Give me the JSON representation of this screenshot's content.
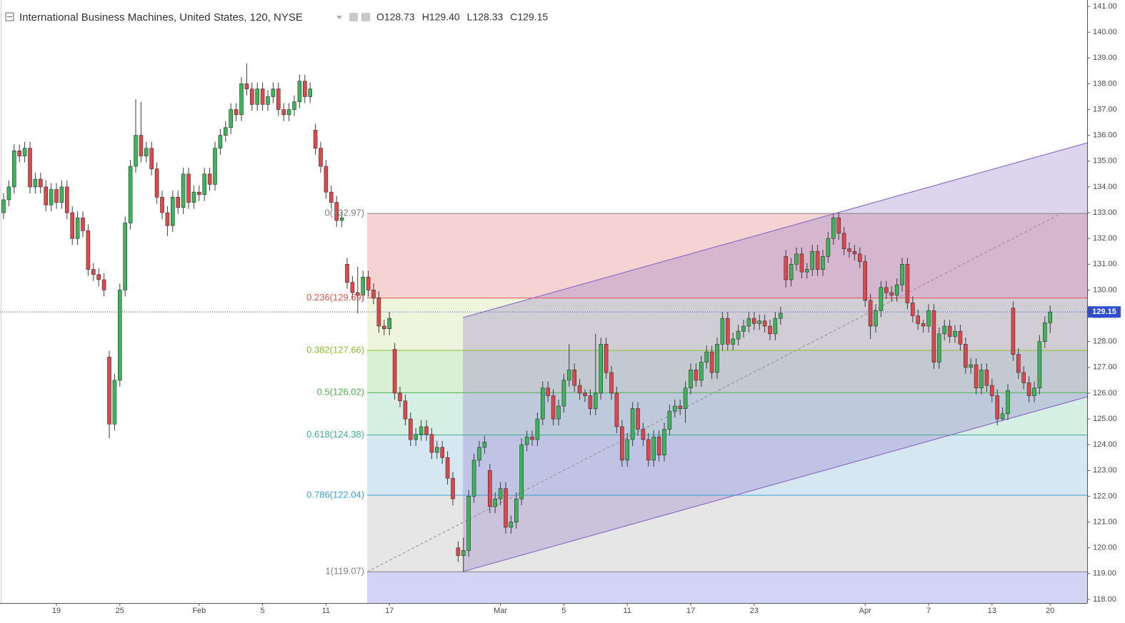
{
  "header": {
    "title": "International Business Machines, United States, 120, NYSE",
    "ohlc": [
      "O128.73",
      "H129.40",
      "L128.33",
      "C129.15"
    ]
  },
  "chart_data": {
    "type": "candlestick",
    "categories": [
      null,
      null,
      null,
      null,
      null,
      null,
      null,
      null,
      null,
      null,
      "19",
      null,
      null,
      null,
      null,
      null,
      null,
      null,
      null,
      null,
      null,
      null,
      "25",
      null,
      null,
      null,
      null,
      null,
      null,
      null,
      null,
      null,
      null,
      null,
      null,
      null,
      null,
      "Feb",
      null,
      null,
      null,
      null,
      null,
      null,
      null,
      null,
      null,
      null,
      null,
      "5",
      null,
      null,
      null,
      null,
      null,
      null,
      null,
      null,
      null,
      null,
      null,
      "11",
      null,
      null,
      null,
      null,
      null,
      null,
      null,
      null,
      null,
      null,
      null,
      "17",
      null,
      null,
      null,
      null,
      null,
      null,
      null,
      null,
      null,
      null,
      null,
      null,
      null,
      null,
      null,
      null,
      null,
      null,
      null,
      null,
      "Mar",
      null,
      null,
      null,
      null,
      null,
      null,
      null,
      null,
      null,
      null,
      null,
      "5",
      null,
      null,
      null,
      null,
      null,
      null,
      null,
      null,
      null,
      null,
      null,
      "11",
      null,
      null,
      null,
      null,
      null,
      null,
      null,
      null,
      null,
      null,
      null,
      "17",
      null,
      null,
      null,
      null,
      null,
      null,
      null,
      null,
      null,
      null,
      null,
      "23",
      null,
      null,
      null,
      null,
      null,
      null,
      null,
      null,
      null,
      null,
      null,
      null,
      null,
      null,
      null,
      null,
      null,
      null,
      null,
      null,
      "Apr",
      null,
      null,
      null,
      null,
      null,
      null,
      null,
      null,
      null,
      null,
      null,
      "7",
      null,
      null,
      null,
      null,
      null,
      null,
      null,
      null,
      null,
      null,
      null,
      "13",
      null,
      null,
      null,
      null,
      null,
      null,
      null,
      null,
      null,
      null,
      "20"
    ],
    "open": [
      133.0,
      133.5,
      134.0,
      135.4,
      135.2,
      135.5,
      134.0,
      134.3,
      134.0,
      133.3,
      133.9,
      133.4,
      134.0,
      133.0,
      132.0,
      132.8,
      132.3,
      130.8,
      130.6,
      130.4,
      127.4,
      124.8,
      126.5,
      130.0,
      132.6,
      134.8,
      136.0,
      135.2,
      135.5,
      134.7,
      133.6,
      133.0,
      132.5,
      133.6,
      133.2,
      134.5,
      133.4,
      133.8,
      133.7,
      134.5,
      134.1,
      135.5,
      136.0,
      136.3,
      137.0,
      136.8,
      138.0,
      137.8,
      137.2,
      137.8,
      137.2,
      137.5,
      137.8,
      137.0,
      136.8,
      137.0,
      137.3,
      138.1,
      137.5,
      136.2,
      135.5,
      134.8,
      133.8,
      133.4,
      132.7,
      131.0,
      130.3,
      129.9,
      129.8,
      130.5,
      130.0,
      129.7,
      128.6,
      128.5,
      127.7,
      126.0,
      125.7,
      125.0,
      124.2,
      124.4,
      124.7,
      124.4,
      123.7,
      123.9,
      123.5,
      122.7,
      120.0,
      119.7,
      119.9,
      122.0,
      123.4,
      123.9,
      123.0,
      121.6,
      121.9,
      122.3,
      120.8,
      121.0,
      121.9,
      124.0,
      124.3,
      124.2,
      125.0,
      126.2,
      125.9,
      125.0,
      125.5,
      126.5,
      126.9,
      126.3,
      126.0,
      125.9,
      125.4,
      126.0,
      127.9,
      126.8,
      126.0,
      124.7,
      123.4,
      124.2,
      125.4,
      124.6,
      124.2,
      123.4,
      124.3,
      123.6,
      124.6,
      125.3,
      125.5,
      125.4,
      126.2,
      126.9,
      126.5,
      127.2,
      127.6,
      126.8,
      127.9,
      128.9,
      127.9,
      128.1,
      128.4,
      128.6,
      128.9,
      128.7,
      128.8,
      128.6,
      128.3,
      128.9,
      131.3,
      130.4,
      131.0,
      131.4,
      130.7,
      130.8,
      131.5,
      130.8,
      131.3,
      132.0,
      132.8,
      132.2,
      131.6,
      131.5,
      131.4,
      131.1,
      129.6,
      128.6,
      129.2,
      130.1,
      129.9,
      129.8,
      130.2,
      131.0,
      129.5,
      129.0,
      128.7,
      128.6,
      129.2,
      127.2,
      128.3,
      128.6,
      128.2,
      128.4,
      127.9,
      127.0,
      127.1,
      126.2,
      126.9,
      126.3,
      125.9,
      125.0,
      125.2,
      129.3,
      127.5,
      126.8,
      126.4,
      125.9,
      126.2,
      128.0,
      128.73
    ],
    "high": [
      133.75,
      134.25,
      135.65,
      135.65,
      135.75,
      135.75,
      134.55,
      134.55,
      134.25,
      134.15,
      134.15,
      134.25,
      134.25,
      133.25,
      133.05,
      133.05,
      132.55,
      131.05,
      130.85,
      130.65,
      127.65,
      126.75,
      130.25,
      132.85,
      135.05,
      137.4,
      137.3,
      135.75,
      135.75,
      134.95,
      133.85,
      133.25,
      133.85,
      133.85,
      134.75,
      134.75,
      134.05,
      134.05,
      134.75,
      134.75,
      135.75,
      136.25,
      136.55,
      137.25,
      137.25,
      138.25,
      138.8,
      138.05,
      138.05,
      138.05,
      137.75,
      138.05,
      138.05,
      137.25,
      137.25,
      137.55,
      138.35,
      138.35,
      138.05,
      136.45,
      135.75,
      135.05,
      134.05,
      133.65,
      133.05,
      131.25,
      130.55,
      130.9,
      130.75,
      130.75,
      130.25,
      129.95,
      128.85,
      129.15,
      127.95,
      126.25,
      125.95,
      125.25,
      124.65,
      124.95,
      124.95,
      124.65,
      124.15,
      124.15,
      123.75,
      122.95,
      120.25,
      120.4,
      122.25,
      123.65,
      124.15,
      124.35,
      123.25,
      122.15,
      122.55,
      122.55,
      121.25,
      122.15,
      124.25,
      124.55,
      124.55,
      125.25,
      126.45,
      126.45,
      126.15,
      125.75,
      126.75,
      127.9,
      127.15,
      126.55,
      126.15,
      126.15,
      128.3,
      128.15,
      128.15,
      127.05,
      126.25,
      124.95,
      124.45,
      125.65,
      125.65,
      124.85,
      124.45,
      124.55,
      124.55,
      124.85,
      125.55,
      125.75,
      125.75,
      126.45,
      127.15,
      127.15,
      127.45,
      127.85,
      127.85,
      128.15,
      129.15,
      129.15,
      128.35,
      128.65,
      128.85,
      129.15,
      129.15,
      129.05,
      129.05,
      128.85,
      129.15,
      129.35,
      131.55,
      131.25,
      131.65,
      131.65,
      131.05,
      131.75,
      131.75,
      131.55,
      132.25,
      132.97,
      133.0,
      132.45,
      131.85,
      131.75,
      131.65,
      131.35,
      129.85,
      129.45,
      130.35,
      130.35,
      130.15,
      130.45,
      131.25,
      131.25,
      129.75,
      129.25,
      128.85,
      129.45,
      129.45,
      128.55,
      128.85,
      128.85,
      128.65,
      128.65,
      128.15,
      127.35,
      127.35,
      127.15,
      127.15,
      126.55,
      126.15,
      125.45,
      126.35,
      129.55,
      127.75,
      127.05,
      126.65,
      126.45,
      128.25,
      128.98,
      129.4
    ],
    "low": [
      132.75,
      133.25,
      133.75,
      134.95,
      134.95,
      133.75,
      133.75,
      133.75,
      133.05,
      133.05,
      133.15,
      133.15,
      132.75,
      131.75,
      131.75,
      132.05,
      130.55,
      130.35,
      130.15,
      129.75,
      124.25,
      124.55,
      126.25,
      129.75,
      132.35,
      134.55,
      134.95,
      134.95,
      134.45,
      133.35,
      132.75,
      132.1,
      132.25,
      132.95,
      132.95,
      133.15,
      133.15,
      133.45,
      133.45,
      133.85,
      133.85,
      135.25,
      135.75,
      136.05,
      136.55,
      136.55,
      137.55,
      136.95,
      136.95,
      136.95,
      136.95,
      137.25,
      136.75,
      136.55,
      136.55,
      136.75,
      137.05,
      137.25,
      137.25,
      135.25,
      134.55,
      133.55,
      133.15,
      132.45,
      132.45,
      130.05,
      129.65,
      129.1,
      129.55,
      129.75,
      129.45,
      128.35,
      128.25,
      128.25,
      125.75,
      125.45,
      124.75,
      123.95,
      123.95,
      124.15,
      124.15,
      123.45,
      123.45,
      123.25,
      122.45,
      121.65,
      119.45,
      119.07,
      119.65,
      121.75,
      123.15,
      123.65,
      121.35,
      121.35,
      121.65,
      120.55,
      120.55,
      120.75,
      121.65,
      123.75,
      123.95,
      123.95,
      124.75,
      125.65,
      124.75,
      124.75,
      125.25,
      126.25,
      126.05,
      125.75,
      125.65,
      125.15,
      125.15,
      125.75,
      126.55,
      125.75,
      124.45,
      123.15,
      123.15,
      123.95,
      124.35,
      123.95,
      123.15,
      123.15,
      123.35,
      123.35,
      124.35,
      125.05,
      125.15,
      124.85,
      125.95,
      126.25,
      126.25,
      126.95,
      126.55,
      126.55,
      127.65,
      127.65,
      127.65,
      127.85,
      128.15,
      128.35,
      128.45,
      128.45,
      128.35,
      128.05,
      128.05,
      128.65,
      130.1,
      130.15,
      130.75,
      130.45,
      130.45,
      130.55,
      130.55,
      130.55,
      131.05,
      131.75,
      131.95,
      131.35,
      131.25,
      131.15,
      130.85,
      129.35,
      128.1,
      128.35,
      128.95,
      129.65,
      129.55,
      129.55,
      129.95,
      129.25,
      128.75,
      128.45,
      128.35,
      128.35,
      126.95,
      126.95,
      128.05,
      127.95,
      127.95,
      127.65,
      126.75,
      126.75,
      125.95,
      125.95,
      126.05,
      125.65,
      124.75,
      124.95,
      124.95,
      127.25,
      126.55,
      126.15,
      125.65,
      125.65,
      125.95,
      127.75,
      128.33
    ],
    "close": [
      133.5,
      134.0,
      135.4,
      135.2,
      135.5,
      134.0,
      134.3,
      134.0,
      133.3,
      133.9,
      133.4,
      134.0,
      133.0,
      132.0,
      132.8,
      132.3,
      130.8,
      130.6,
      130.4,
      130.0,
      124.8,
      126.5,
      130.0,
      132.6,
      134.8,
      136.0,
      135.2,
      135.5,
      134.7,
      133.6,
      133.0,
      132.5,
      133.6,
      133.2,
      134.5,
      133.4,
      133.8,
      133.7,
      134.5,
      134.1,
      135.5,
      136.0,
      136.3,
      137.0,
      136.8,
      138.0,
      137.8,
      137.2,
      137.8,
      137.2,
      137.5,
      137.8,
      137.0,
      136.8,
      137.0,
      137.3,
      138.1,
      137.5,
      137.8,
      135.5,
      134.8,
      133.8,
      133.4,
      132.7,
      132.8,
      130.3,
      129.9,
      129.8,
      130.5,
      130.0,
      129.7,
      128.6,
      128.5,
      128.9,
      126.0,
      125.7,
      125.0,
      124.2,
      124.4,
      124.7,
      124.4,
      123.7,
      123.9,
      123.5,
      122.7,
      121.9,
      119.7,
      119.9,
      122.0,
      123.4,
      123.9,
      124.1,
      121.6,
      121.9,
      122.3,
      120.8,
      121.0,
      121.9,
      124.0,
      124.3,
      124.2,
      125.0,
      126.2,
      125.9,
      125.0,
      125.5,
      126.5,
      126.9,
      126.3,
      126.0,
      125.9,
      125.4,
      126.0,
      127.9,
      126.8,
      126.0,
      124.7,
      123.4,
      124.2,
      125.4,
      124.6,
      124.2,
      123.4,
      124.3,
      123.6,
      124.6,
      125.3,
      125.5,
      125.4,
      126.2,
      126.9,
      126.5,
      127.2,
      127.6,
      126.8,
      127.9,
      128.9,
      127.9,
      128.1,
      128.4,
      128.6,
      128.9,
      128.7,
      128.8,
      128.6,
      128.3,
      128.9,
      129.1,
      130.4,
      131.0,
      131.4,
      130.7,
      130.8,
      131.5,
      130.8,
      131.3,
      132.0,
      132.8,
      132.2,
      131.6,
      131.5,
      131.4,
      131.1,
      129.6,
      128.6,
      129.2,
      130.1,
      129.9,
      129.8,
      130.2,
      131.0,
      129.5,
      129.0,
      128.7,
      128.6,
      129.2,
      127.2,
      128.3,
      128.6,
      128.2,
      128.4,
      127.9,
      127.0,
      127.1,
      126.2,
      126.9,
      126.3,
      125.9,
      125.0,
      125.2,
      126.1,
      127.5,
      126.8,
      126.4,
      125.9,
      126.2,
      128.0,
      128.73,
      129.15
    ],
    "up_color": "#3cb55a",
    "down_color": "#e0474c",
    "wick_color": "#3a3a3a",
    "ylim": [
      117.86,
      141.25
    ],
    "yticks": [
      {
        "value": 118,
        "label": "118.00"
      },
      {
        "value": 119,
        "label": "119.00"
      },
      {
        "value": 120,
        "label": "120.00"
      },
      {
        "value": 121,
        "label": "121.00"
      },
      {
        "value": 122,
        "label": "122.00"
      },
      {
        "value": 123,
        "label": "123.00"
      },
      {
        "value": 124,
        "label": "124.00"
      },
      {
        "value": 125,
        "label": "125.00"
      },
      {
        "value": 126,
        "label": "126.00"
      },
      {
        "value": 127,
        "label": "127.00"
      },
      {
        "value": 128,
        "label": "128.00"
      },
      {
        "value": 129,
        "label": "129.00"
      },
      {
        "value": 130,
        "label": "130.00"
      },
      {
        "value": 131,
        "label": "131.00"
      },
      {
        "value": 132,
        "label": "132.00"
      },
      {
        "value": 133,
        "label": "133.00"
      },
      {
        "value": 134,
        "label": "134.00"
      },
      {
        "value": 135,
        "label": "135.00"
      },
      {
        "value": 136,
        "label": "136.00"
      },
      {
        "value": 137,
        "label": "137.00"
      },
      {
        "value": 138,
        "label": "138.00"
      },
      {
        "value": 139,
        "label": "139.00"
      },
      {
        "value": 140,
        "label": "140.00"
      },
      {
        "value": 141,
        "label": "141.00"
      }
    ],
    "last_price": {
      "value": 129.15,
      "color": "#2f4fd0"
    },
    "fib": {
      "x": [
        68.8,
        205
      ],
      "levels": [
        {
          "value": 132.97,
          "label": "0(132.97)",
          "color": "#808080",
          "fill": "#f5d3d3"
        },
        {
          "value": 129.69,
          "label": "0.236(129.69)",
          "color": "#e35454",
          "fill": "#eef5dc"
        },
        {
          "value": 127.66,
          "label": "0.382(127.66)",
          "color": "#8bbe30",
          "fill": "#d9f0d4"
        },
        {
          "value": 126.02,
          "label": "0.5(126.02)",
          "color": "#4caf50",
          "fill": "#d5efe5"
        },
        {
          "value": 124.38,
          "label": "0.618(124.38)",
          "color": "#3fb08f",
          "fill": "#d5e8f2"
        },
        {
          "value": 122.04,
          "label": "0.786(122.04)",
          "color": "#3a9fd0",
          "fill": "#e6e6e6"
        },
        {
          "value": 119.07,
          "label": "1(119.07)",
          "color": "#808080",
          "fill": "#d3d3f5"
        }
      ]
    },
    "channel": {
      "x": [
        86.9,
        205
      ],
      "upper": [
        128.93,
        135.71
      ],
      "lower": [
        119.08,
        125.86
      ],
      "color": "#8e6fc6"
    },
    "trend_line": {
      "x": [
        68.8,
        200.1
      ],
      "y": [
        119.07,
        132.97
      ],
      "color": "#909090"
    }
  }
}
